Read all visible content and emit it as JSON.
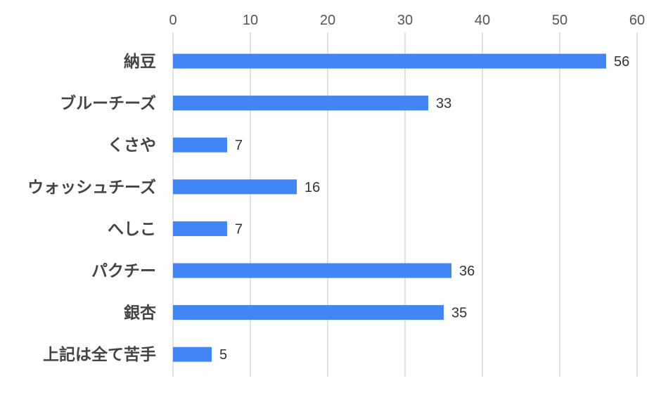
{
  "chart_data": {
    "type": "bar",
    "orientation": "horizontal",
    "categories": [
      "納豆",
      "ブルーチーズ",
      "くさや",
      "ウォッシュチーズ",
      "へしこ",
      "パクチー",
      "銀杏",
      "上記は全て苦手"
    ],
    "values": [
      56,
      33,
      7,
      16,
      7,
      36,
      35,
      5
    ],
    "data_labels": [
      "56",
      "33",
      "7",
      "16",
      "7",
      "36",
      "35",
      "5"
    ],
    "xticks": [
      0,
      10,
      20,
      30,
      40,
      50,
      60
    ],
    "xtick_labels": [
      "0",
      "10",
      "20",
      "30",
      "40",
      "50",
      "60"
    ],
    "xlim": [
      0,
      60
    ],
    "x_axis_position": "top",
    "grid": true,
    "legend": "none",
    "bar_color": "#4285f4",
    "title": "",
    "xlabel": "",
    "ylabel": ""
  }
}
